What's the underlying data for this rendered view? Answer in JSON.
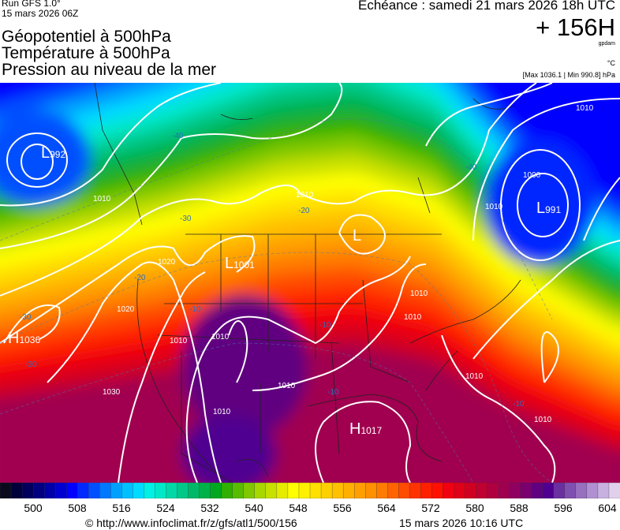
{
  "header": {
    "run": "Run GFS 1.0°",
    "run_date": "15 mars 2026 06Z",
    "titles": [
      "Géopotentiel à 500hPa",
      "Température à 500hPa",
      "Pression au niveau de la mer"
    ],
    "echeance": "Echéance : samedi 21 mars 2026 18h UTC",
    "lead": "+ 156H",
    "unit_geo": "gpdam",
    "unit_temp": "°C",
    "pressure_range": "[Max 1036.1 | Min 990.8] hPa"
  },
  "map": {
    "pressure_centers": [
      {
        "type": "L",
        "value": "992"
      },
      {
        "type": "L",
        "value": "991"
      },
      {
        "type": "L",
        "value": "1001"
      },
      {
        "type": "L",
        "value": ""
      },
      {
        "type": "H",
        "value": "1036"
      },
      {
        "type": "H",
        "value": "1017"
      }
    ],
    "isobar_labels": [
      "1010",
      "1020",
      "1030",
      "1020",
      "1010",
      "1010",
      "1010",
      "1010",
      "1010",
      "1010",
      "1000",
      "1010",
      "1010",
      "1010",
      "1010",
      "1010"
    ],
    "temperature_labels": [
      "-40",
      "-30",
      "-30",
      "-20",
      "-20",
      "-20",
      "-10",
      "-10",
      "-10",
      "-10",
      "-40"
    ]
  },
  "colorbar": {
    "ticks": [
      "500",
      "508",
      "516",
      "524",
      "532",
      "540",
      "548",
      "556",
      "564",
      "572",
      "580",
      "588",
      "596",
      "604"
    ],
    "colors": [
      "#0a0a1e",
      "#00003a",
      "#00005c",
      "#000080",
      "#0000a8",
      "#0000d0",
      "#0000ff",
      "#0028ff",
      "#0050ff",
      "#0078ff",
      "#00a0ff",
      "#00c0ff",
      "#00dcff",
      "#00f0e6",
      "#00e8c8",
      "#00d8a8",
      "#00c888",
      "#00b868",
      "#00b048",
      "#00a820",
      "#30b000",
      "#58bc00",
      "#80c800",
      "#a8d800",
      "#c8e000",
      "#e6ec00",
      "#ffff00",
      "#fff000",
      "#ffe000",
      "#ffd000",
      "#ffc000",
      "#ffb000",
      "#ffa000",
      "#ff9000",
      "#ff7c00",
      "#ff6400",
      "#ff4c00",
      "#ff3400",
      "#ff2000",
      "#ff1000",
      "#f00010",
      "#e00018",
      "#d00020",
      "#c00030",
      "#b00040",
      "#a00050",
      "#900060",
      "#7a0070",
      "#600080",
      "#500090",
      "#6a30a0",
      "#8050b0",
      "#9870c0",
      "#b090d0",
      "#c8b0e0",
      "#e0d0ec"
    ]
  },
  "footer": {
    "source": "© http://www.infoclimat.fr/z/gfs/atl1/500/156",
    "generated": "15 mars 2026 10:16 UTC"
  }
}
